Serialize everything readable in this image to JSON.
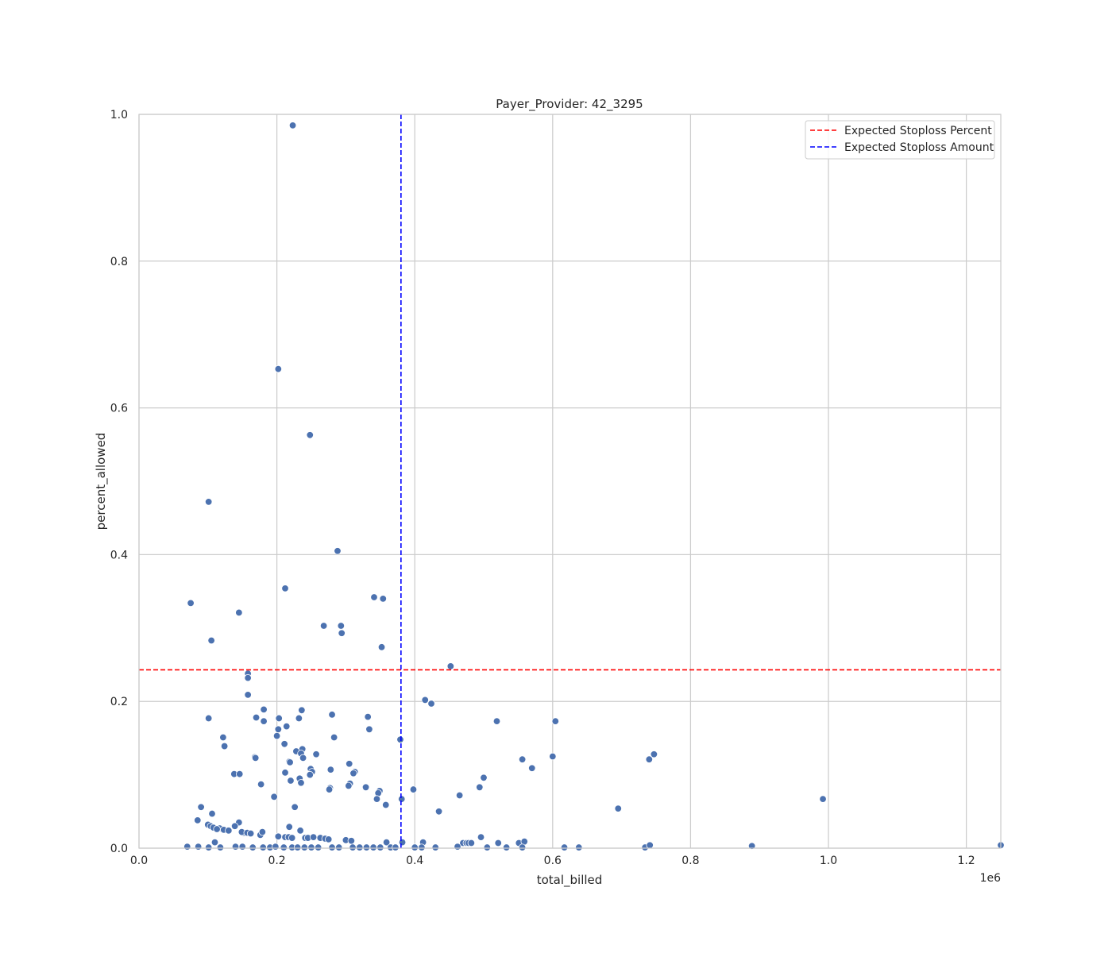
{
  "chart_data": {
    "type": "scatter",
    "title": "Payer_Provider: 42_3295",
    "xlabel": "total_billed",
    "ylabel": "percent_allowed",
    "x_offset_label": "1e6",
    "xlim": [
      0,
      1250000
    ],
    "ylim": [
      0,
      1.0
    ],
    "xticks": [
      0,
      200000,
      400000,
      600000,
      800000,
      1000000,
      1200000
    ],
    "xtick_labels": [
      "0.0",
      "0.2",
      "0.4",
      "0.6",
      "0.8",
      "1.0",
      "1.2"
    ],
    "yticks": [
      0,
      0.2,
      0.4,
      0.6,
      0.8,
      1.0
    ],
    "ytick_labels": [
      "0.0",
      "0.2",
      "0.4",
      "0.6",
      "0.8",
      "1.0"
    ],
    "grid": true,
    "legend_position": "top-right",
    "reference_lines": [
      {
        "name": "Expected Stoploss Percent",
        "orientation": "horizontal",
        "value": 0.243,
        "color": "#ff0000",
        "style": "dashed"
      },
      {
        "name": "Expected Stoploss Amount",
        "orientation": "vertical",
        "value": 380000,
        "color": "#0000ff",
        "style": "dashed"
      }
    ],
    "point_color": "#4c72b0",
    "points": [
      [
        223000,
        0.985
      ],
      [
        202000,
        0.653
      ],
      [
        248000,
        0.563
      ],
      [
        101000,
        0.472
      ],
      [
        288000,
        0.405
      ],
      [
        75000,
        0.334
      ],
      [
        212000,
        0.354
      ],
      [
        341000,
        0.342
      ],
      [
        354000,
        0.34
      ],
      [
        145000,
        0.321
      ],
      [
        268000,
        0.303
      ],
      [
        293000,
        0.303
      ],
      [
        294000,
        0.293
      ],
      [
        105000,
        0.283
      ],
      [
        352000,
        0.274
      ],
      [
        452000,
        0.248
      ],
      [
        158000,
        0.238
      ],
      [
        158000,
        0.232
      ],
      [
        158000,
        0.209
      ],
      [
        415000,
        0.202
      ],
      [
        424000,
        0.197
      ],
      [
        181000,
        0.189
      ],
      [
        236000,
        0.188
      ],
      [
        280000,
        0.182
      ],
      [
        332000,
        0.179
      ],
      [
        101000,
        0.177
      ],
      [
        170000,
        0.178
      ],
      [
        203000,
        0.177
      ],
      [
        232000,
        0.177
      ],
      [
        519000,
        0.173
      ],
      [
        604000,
        0.173
      ],
      [
        181000,
        0.173
      ],
      [
        214000,
        0.166
      ],
      [
        202000,
        0.162
      ],
      [
        334000,
        0.162
      ],
      [
        122000,
        0.151
      ],
      [
        283000,
        0.151
      ],
      [
        200000,
        0.153
      ],
      [
        379000,
        0.148
      ],
      [
        211000,
        0.142
      ],
      [
        124000,
        0.139
      ],
      [
        237000,
        0.135
      ],
      [
        228000,
        0.132
      ],
      [
        235000,
        0.129
      ],
      [
        257000,
        0.128
      ],
      [
        747000,
        0.128
      ],
      [
        168000,
        0.124
      ],
      [
        169000,
        0.123
      ],
      [
        238000,
        0.123
      ],
      [
        600000,
        0.125
      ],
      [
        556000,
        0.121
      ],
      [
        740000,
        0.121
      ],
      [
        218000,
        0.118
      ],
      [
        219000,
        0.117
      ],
      [
        305000,
        0.115
      ],
      [
        570000,
        0.109
      ],
      [
        249000,
        0.108
      ],
      [
        278000,
        0.107
      ],
      [
        251000,
        0.104
      ],
      [
        313000,
        0.104
      ],
      [
        138000,
        0.101
      ],
      [
        146000,
        0.101
      ],
      [
        212000,
        0.103
      ],
      [
        311000,
        0.102
      ],
      [
        248000,
        0.1
      ],
      [
        500000,
        0.096
      ],
      [
        233000,
        0.095
      ],
      [
        220000,
        0.092
      ],
      [
        235000,
        0.089
      ],
      [
        177000,
        0.087
      ],
      [
        306000,
        0.088
      ],
      [
        304000,
        0.085
      ],
      [
        329000,
        0.083
      ],
      [
        494000,
        0.083
      ],
      [
        277000,
        0.082
      ],
      [
        276000,
        0.08
      ],
      [
        398000,
        0.08
      ],
      [
        349000,
        0.078
      ],
      [
        347000,
        0.075
      ],
      [
        196000,
        0.07
      ],
      [
        465000,
        0.072
      ],
      [
        345000,
        0.067
      ],
      [
        381000,
        0.067
      ],
      [
        992000,
        0.067
      ],
      [
        358000,
        0.059
      ],
      [
        90000,
        0.056
      ],
      [
        226000,
        0.056
      ],
      [
        695000,
        0.054
      ],
      [
        435000,
        0.05
      ],
      [
        106000,
        0.047
      ],
      [
        85000,
        0.038
      ],
      [
        145000,
        0.035
      ],
      [
        139000,
        0.03
      ],
      [
        218000,
        0.029
      ],
      [
        100000,
        0.032
      ],
      [
        104000,
        0.03
      ],
      [
        108000,
        0.028
      ],
      [
        117000,
        0.027
      ],
      [
        113000,
        0.026
      ],
      [
        123000,
        0.025
      ],
      [
        130000,
        0.024
      ],
      [
        234000,
        0.024
      ],
      [
        152000,
        0.021
      ],
      [
        149000,
        0.022
      ],
      [
        157000,
        0.021
      ],
      [
        162000,
        0.02
      ],
      [
        176000,
        0.018
      ],
      [
        179000,
        0.022
      ],
      [
        202000,
        0.016
      ],
      [
        212000,
        0.015
      ],
      [
        217000,
        0.015
      ],
      [
        222000,
        0.014
      ],
      [
        241000,
        0.014
      ],
      [
        245000,
        0.014
      ],
      [
        253000,
        0.015
      ],
      [
        263000,
        0.014
      ],
      [
        270000,
        0.013
      ],
      [
        275000,
        0.012
      ],
      [
        300000,
        0.011
      ],
      [
        308000,
        0.01
      ],
      [
        496000,
        0.015
      ],
      [
        110000,
        0.008
      ],
      [
        359000,
        0.008
      ],
      [
        382000,
        0.008
      ],
      [
        412000,
        0.008
      ],
      [
        470000,
        0.007
      ],
      [
        475000,
        0.007
      ],
      [
        478000,
        0.007
      ],
      [
        482000,
        0.007
      ],
      [
        521000,
        0.007
      ],
      [
        551000,
        0.007
      ],
      [
        559000,
        0.009
      ],
      [
        70000,
        0.002
      ],
      [
        86000,
        0.002
      ],
      [
        101000,
        0.001
      ],
      [
        118000,
        0.001
      ],
      [
        140000,
        0.002
      ],
      [
        150000,
        0.002
      ],
      [
        165000,
        0.001
      ],
      [
        180000,
        0.001
      ],
      [
        190000,
        0.001
      ],
      [
        198000,
        0.002
      ],
      [
        210000,
        0.001
      ],
      [
        222000,
        0.001
      ],
      [
        230000,
        0.001
      ],
      [
        240000,
        0.001
      ],
      [
        250000,
        0.001
      ],
      [
        260000,
        0.001
      ],
      [
        280000,
        0.001
      ],
      [
        290000,
        0.001
      ],
      [
        310000,
        0.001
      ],
      [
        320000,
        0.001
      ],
      [
        330000,
        0.001
      ],
      [
        340000,
        0.001
      ],
      [
        350000,
        0.001
      ],
      [
        365000,
        0.001
      ],
      [
        372000,
        0.001
      ],
      [
        400000,
        0.001
      ],
      [
        410000,
        0.001
      ],
      [
        430000,
        0.001
      ],
      [
        462000,
        0.002
      ],
      [
        505000,
        0.001
      ],
      [
        533000,
        0.001
      ],
      [
        556000,
        0.001
      ],
      [
        617000,
        0.001
      ],
      [
        638000,
        0.001
      ],
      [
        734000,
        0.001
      ],
      [
        741000,
        0.004
      ],
      [
        889000,
        0.003
      ],
      [
        1250000,
        0.004
      ]
    ]
  }
}
